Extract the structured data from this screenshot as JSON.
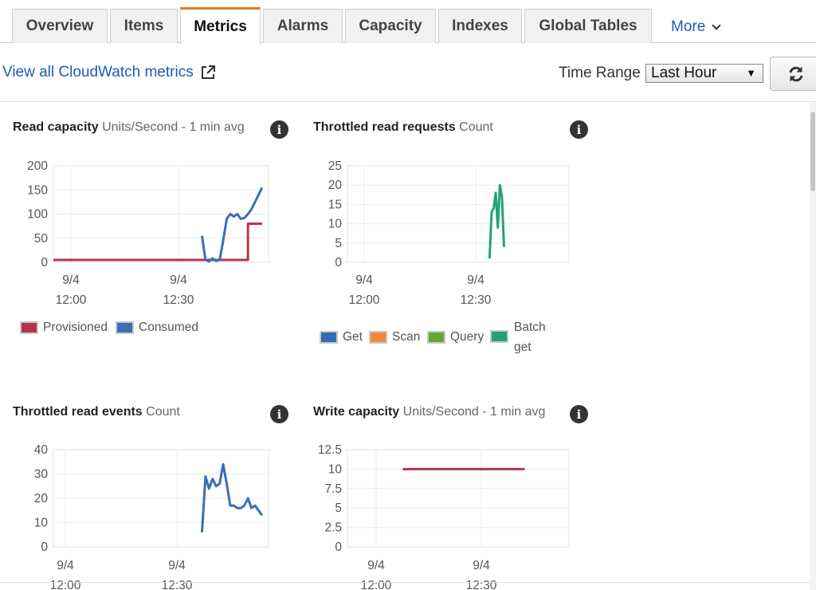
{
  "tabs": [
    {
      "label": "Overview"
    },
    {
      "label": "Items"
    },
    {
      "label": "Metrics"
    },
    {
      "label": "Alarms"
    },
    {
      "label": "Capacity"
    },
    {
      "label": "Indexes"
    },
    {
      "label": "Global Tables"
    }
  ],
  "active_tab": "Metrics",
  "more_label": "More",
  "toolbar": {
    "cloudwatch_link": "View all CloudWatch metrics",
    "time_range_label": "Time Range",
    "time_range_value": "Last Hour",
    "refresh_icon": "refresh-icon"
  },
  "colors": {
    "accent_tab": "#e07b1b",
    "link": "#1f5bb5",
    "provisioned": "#b5344d",
    "consumed": "#3a6eb5",
    "get": "#2f6db4",
    "scan": "#f0883a",
    "query": "#6aa33c",
    "batch_get": "#1fa37a"
  },
  "widgets": [
    {
      "title": "Read capacity",
      "unit": "Units/Second - 1 min avg",
      "legend": [
        "Provisioned",
        "Consumed"
      ]
    },
    {
      "title": "Throttled read requests",
      "unit": "Count",
      "legend": [
        "Get",
        "Scan",
        "Query",
        "Batch get"
      ],
      "legend_batch_line1": "Batch",
      "legend_batch_line2": "get"
    },
    {
      "title": "Throttled read events",
      "unit": "Count",
      "legend": []
    },
    {
      "title": "Write capacity",
      "unit": "Units/Second - 1 min avg",
      "legend": []
    }
  ],
  "chart_data": [
    {
      "type": "line",
      "title": "Read capacity",
      "subtitle": "Units/Second - 1 min avg",
      "x_ticks": [
        {
          "date": "9/4",
          "time": "12:00"
        },
        {
          "date": "9/4",
          "time": "12:30"
        }
      ],
      "y_ticks": [
        "200",
        "150",
        "100",
        "50",
        "0"
      ],
      "ylim": [
        0,
        200
      ],
      "grid": true,
      "legend_position": "bottom",
      "series": [
        {
          "name": "Provisioned",
          "color": "#b5344d",
          "step": true,
          "x": [
            0,
            1,
            2,
            3,
            4,
            5,
            6,
            7,
            8,
            9,
            10,
            11,
            12,
            13,
            14,
            15,
            16,
            17,
            18,
            19,
            20,
            21,
            22,
            23,
            24,
            25,
            26,
            27,
            28,
            29,
            30,
            31,
            32,
            33,
            34,
            35,
            36,
            37,
            38,
            39,
            40,
            41,
            42,
            43,
            44,
            45,
            46,
            47,
            48,
            49,
            50,
            51,
            52,
            53,
            54,
            55,
            56,
            57,
            58,
            59
          ],
          "values": [
            5,
            5,
            5,
            5,
            5,
            5,
            5,
            5,
            5,
            5,
            5,
            5,
            5,
            5,
            5,
            5,
            5,
            5,
            5,
            5,
            5,
            5,
            5,
            5,
            5,
            5,
            5,
            5,
            5,
            5,
            5,
            5,
            5,
            5,
            5,
            5,
            5,
            5,
            5,
            5,
            5,
            5,
            5,
            5,
            5,
            5,
            5,
            5,
            5,
            5,
            5,
            5,
            5,
            5,
            5,
            80,
            80,
            80,
            80,
            80
          ]
        },
        {
          "name": "Consumed",
          "color": "#3a6eb5",
          "x": [
            42,
            43,
            44,
            45,
            46,
            47,
            48,
            49,
            50,
            51,
            52,
            53,
            54,
            55,
            56,
            57,
            58,
            59
          ],
          "values": [
            55,
            5,
            2,
            8,
            3,
            5,
            45,
            90,
            100,
            95,
            100,
            90,
            92,
            100,
            110,
            125,
            140,
            155
          ]
        }
      ]
    },
    {
      "type": "line",
      "title": "Throttled read requests",
      "subtitle": "Count",
      "x_ticks": [
        {
          "date": "9/4",
          "time": "12:00"
        },
        {
          "date": "9/4",
          "time": "12:30"
        }
      ],
      "y_ticks": [
        "25",
        "20",
        "15",
        "10",
        "5",
        "0"
      ],
      "ylim": [
        0,
        25
      ],
      "grid": true,
      "legend_position": "bottom",
      "series": [
        {
          "name": "Batch get",
          "color": "#1fa37a",
          "x": [
            42,
            43,
            44,
            45,
            46,
            47,
            48,
            49
          ],
          "values": [
            1,
            13,
            14,
            18,
            9,
            20,
            17,
            4
          ]
        }
      ]
    },
    {
      "type": "line",
      "title": "Throttled read events",
      "subtitle": "Count",
      "x_ticks": [
        {
          "date": "9/4",
          "time": "12:00"
        },
        {
          "date": "9/4",
          "time": "12:30"
        }
      ],
      "y_ticks": [
        "40",
        "30",
        "20",
        "10",
        "0"
      ],
      "ylim": [
        0,
        40
      ],
      "grid": true,
      "series": [
        {
          "name": "",
          "color": "#3a6eb5",
          "x": [
            42,
            43,
            44,
            45,
            46,
            47,
            48,
            49,
            50,
            51,
            52,
            53,
            54,
            55,
            56,
            57,
            58,
            59
          ],
          "values": [
            6,
            29,
            24,
            28,
            25,
            26,
            34,
            26,
            17,
            17,
            16,
            16,
            17,
            20,
            16,
            17,
            15,
            13
          ]
        }
      ]
    },
    {
      "type": "line",
      "title": "Write capacity",
      "subtitle": "Units/Second - 1 min avg",
      "x_ticks": [
        {
          "date": "9/4",
          "time": "12:00"
        },
        {
          "date": "9/4",
          "time": "12:30"
        }
      ],
      "y_ticks": [
        "12.5",
        "10",
        "7.5",
        "5",
        "2.5",
        "0"
      ],
      "ylim": [
        0,
        12.5
      ],
      "grid": true,
      "series": [
        {
          "name": "",
          "color": "#b5344d",
          "x": [
            0,
            59
          ],
          "values": [
            10,
            10
          ]
        }
      ]
    }
  ]
}
